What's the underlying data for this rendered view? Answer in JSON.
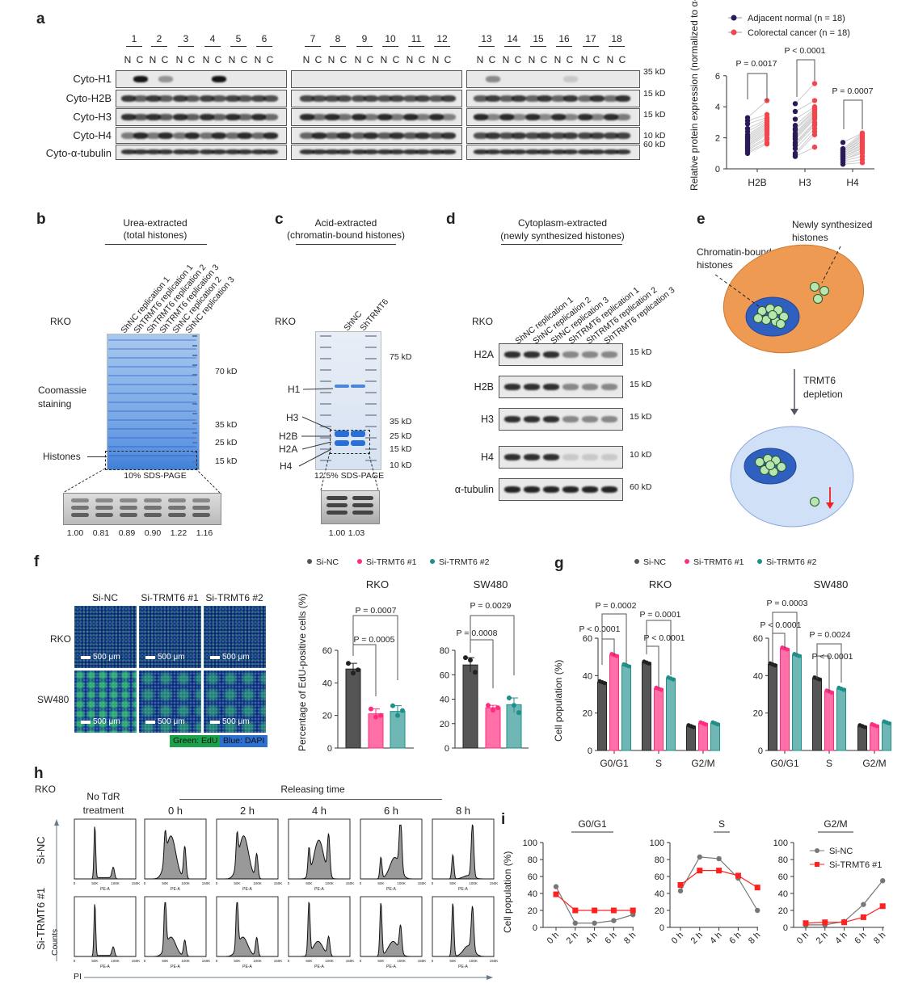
{
  "panel_labels": {
    "a": "a",
    "b": "b",
    "c": "c",
    "d": "d",
    "e": "e",
    "f": "f",
    "g": "g",
    "h": "h",
    "i": "i"
  },
  "colors": {
    "si_nc": "#555555",
    "si_trmt6_1": "#ff6fa8",
    "si_trmt6_2": "#6fb7b4",
    "adjacent_normal": "#2a1a55",
    "colorectal_cancer": "#f2464f",
    "coomassie": "#4a8fe0",
    "cytoplasm": "#ee9a52",
    "nucleus": "#2f5fbf",
    "nucleosome": "#b8e6b0",
    "line_red": "#ff2020",
    "line_grey": "#777777"
  },
  "panel_a": {
    "lanes": [
      "1",
      "2",
      "3",
      "4",
      "5",
      "6",
      "7",
      "8",
      "9",
      "10",
      "11",
      "12",
      "13",
      "14",
      "15",
      "16",
      "17",
      "18"
    ],
    "nc": [
      "N",
      "C"
    ],
    "rows": [
      "Cyto-H1",
      "Cyto-H2B",
      "Cyto-H3",
      "Cyto-H4",
      "Cyto-α-tubulin"
    ],
    "markers": [
      "35 kD",
      "15 kD",
      "15 kD",
      "10 kD",
      "60 kD"
    ]
  },
  "panel_b": {
    "title_line1": "Urea-extracted",
    "title_line2": "(total histones)",
    "cell_line": "RKO",
    "lanes": [
      "ShNC replication 1",
      "ShTRMT6 replication 1",
      "ShTRMT6 replication 2",
      "ShTRMT6 replication 3",
      "ShNC replication 2",
      "ShNC replication 3"
    ],
    "markers": [
      "70 kD",
      "35 kD",
      "25 kD",
      "15 kD"
    ],
    "stain_line1": "Coomassie",
    "stain_line2": "staining",
    "histones": "Histones",
    "gel": "10% SDS-PAGE",
    "quant": [
      "1.00",
      "0.81",
      "0.89",
      "0.90",
      "1.22",
      "1.16"
    ]
  },
  "panel_c": {
    "title_line1": "Acid-extracted",
    "title_line2": "(chromatin-bound histones)",
    "cell_line": "RKO",
    "lanes": [
      "ShNC",
      "ShTRMT6"
    ],
    "markers": [
      "75 kD",
      "35 kD",
      "25 kD",
      "15 kD",
      "10 kD"
    ],
    "bands": [
      "H1",
      "H3",
      "H2B",
      "H2A",
      "H4"
    ],
    "gel": "12.5% SDS-PAGE",
    "quant": [
      "1.00",
      "1.03"
    ]
  },
  "panel_d": {
    "title_line1": "Cytoplasm-extracted",
    "title_line2": "(newly synthesized histones)",
    "cell_line": "RKO",
    "lanes": [
      "ShNC replication 1",
      "ShNC replication 2",
      "ShNC replication 3",
      "ShTRMT6 replication 1",
      "ShTRMT6 replication 2",
      "ShTRMT6 replication 3"
    ],
    "rows": [
      "H2A",
      "H2B",
      "H3",
      "H4",
      "α-tubulin"
    ],
    "markers": [
      "15 kD",
      "15 kD",
      "15 kD",
      "10 kD",
      "60 kD"
    ]
  },
  "panel_e": {
    "newly_line1": "Newly synthesized",
    "newly_line2": "histones",
    "chromatin_line1": "Chromatin-bound",
    "chromatin_line2": "histones",
    "arrow_line1": "TRMT6",
    "arrow_line2": "depletion"
  },
  "panel_f": {
    "columns": [
      "Si-NC",
      "Si-TRMT6 #1",
      "Si-TRMT6 #2"
    ],
    "rows": [
      "RKO",
      "SW480"
    ],
    "scale_bar": "500 μm",
    "green_label": "Green: EdU",
    "blue_label": "Blue: DAPI"
  },
  "legend_fg": [
    "Si-NC",
    "Si-TRMT6 #1",
    "Si-TRMT6 #2"
  ],
  "panel_h": {
    "cell_line": "RKO",
    "no_tdr_line1": "No TdR",
    "no_tdr_line2": "treatment",
    "releasing": "Releasing time",
    "times": [
      "0 h",
      "2 h",
      "4 h",
      "6 h",
      "8 h"
    ],
    "rows": [
      "Si-NC",
      "Si-TRMT6 #1"
    ],
    "ylabel": "Counts",
    "xlabel": "PI",
    "axis_label": "PE-A",
    "x_ticks": [
      "0",
      "50K",
      "100K",
      "150K"
    ]
  },
  "chart_data": [
    {
      "id": "a",
      "type": "scatter",
      "ylabel": "Relative protein expression (normalized to α-tubulin)",
      "categories": [
        "H2B",
        "H3",
        "H4"
      ],
      "ylim": [
        0,
        6
      ],
      "yticks": [
        "0",
        "2",
        "4",
        "6"
      ],
      "legend_position": "top",
      "series": [
        {
          "name": "Adjacent normal (n = 18)",
          "values": {
            "H2B": [
              1.0,
              1.1,
              1.2,
              1.3,
              1.4,
              1.5,
              1.6,
              1.7,
              1.8,
              1.9,
              2.0,
              2.1,
              2.2,
              2.4,
              2.6,
              2.9,
              3.1,
              3.3
            ],
            "H3": [
              0.8,
              0.9,
              1.0,
              1.3,
              1.5,
              1.6,
              1.7,
              1.9,
              2.0,
              2.1,
              2.2,
              2.3,
              2.5,
              2.6,
              2.8,
              3.2,
              3.7,
              4.2
            ],
            "H4": [
              0.3,
              0.4,
              0.5,
              0.6,
              0.6,
              0.7,
              0.8,
              0.8,
              0.9,
              0.9,
              1.0,
              1.0,
              1.1,
              1.1,
              1.2,
              1.2,
              1.3,
              1.7
            ]
          }
        },
        {
          "name": "Colorectal cancer (n = 18)",
          "values": {
            "H2B": [
              1.6,
              1.7,
              1.9,
              2.0,
              2.2,
              2.3,
              2.4,
              2.5,
              2.6,
              2.7,
              2.8,
              2.9,
              3.0,
              3.1,
              3.2,
              3.3,
              3.5,
              4.4
            ],
            "H3": [
              1.4,
              2.2,
              2.4,
              2.6,
              2.8,
              2.9,
              3.0,
              3.2,
              3.3,
              3.4,
              3.5,
              3.6,
              3.7,
              3.8,
              3.9,
              4.0,
              4.4,
              5.5
            ],
            "H4": [
              0.4,
              0.6,
              0.8,
              1.0,
              1.1,
              1.2,
              1.3,
              1.4,
              1.5,
              1.6,
              1.7,
              1.8,
              1.9,
              2.0,
              2.1,
              2.2,
              2.3,
              2.3
            ]
          }
        }
      ],
      "pvalues": [
        "P = 0.0017",
        "P < 0.0001",
        "P = 0.0007"
      ]
    },
    {
      "id": "f-rko",
      "type": "bar",
      "title": "RKO",
      "ylabel": "Percentage of EdU-positive cells (%)",
      "categories": [
        "Si-NC",
        "Si-TRMT6 #1",
        "Si-TRMT6 #2"
      ],
      "values": [
        48.5,
        21,
        22.5
      ],
      "points": [
        [
          52,
          46,
          48
        ],
        [
          24,
          19,
          20
        ],
        [
          26,
          20,
          23
        ]
      ],
      "ylim": [
        0,
        60
      ],
      "yticks": [
        "0",
        "20",
        "40",
        "60"
      ],
      "pvalues": [
        "P = 0.0005",
        "P = 0.0007"
      ]
    },
    {
      "id": "f-sw480",
      "type": "bar",
      "title": "SW480",
      "categories": [
        "Si-NC",
        "Si-TRMT6 #1",
        "Si-TRMT6 #2"
      ],
      "values": [
        68,
        33,
        35.5
      ],
      "points": [
        [
          74,
          72,
          62
        ],
        [
          35,
          31,
          33
        ],
        [
          41,
          35,
          29
        ]
      ],
      "ylim": [
        0,
        80
      ],
      "yticks": [
        "0",
        "20",
        "40",
        "60",
        "80"
      ],
      "pvalues": [
        "P = 0.0008",
        "P = 0.0029"
      ]
    },
    {
      "id": "g-rko",
      "type": "bar",
      "title": "RKO",
      "ylabel": "Cell population (%)",
      "categories": [
        "G0/G1",
        "S",
        "G2/M"
      ],
      "ylim": [
        0,
        60
      ],
      "yticks": [
        "0",
        "20",
        "40",
        "60"
      ],
      "series": [
        {
          "name": "Si-NC",
          "values": [
            36.5,
            47,
            13
          ]
        },
        {
          "name": "Si-TRMT6 #1",
          "values": [
            51,
            33,
            14.5
          ]
        },
        {
          "name": "Si-TRMT6 #2",
          "values": [
            45.5,
            38.5,
            14.5
          ]
        }
      ],
      "pvalues": [
        "P < 0.0001",
        "P = 0.0002",
        "P < 0.0001",
        "P = 0.0001"
      ]
    },
    {
      "id": "g-sw480",
      "type": "bar",
      "title": "SW480",
      "categories": [
        "G0/G1",
        "S",
        "G2/M"
      ],
      "ylim": [
        0,
        60
      ],
      "yticks": [
        "0",
        "20",
        "40",
        "60"
      ],
      "series": [
        {
          "name": "Si-NC",
          "values": [
            46,
            38.5,
            13
          ]
        },
        {
          "name": "Si-TRMT6 #1",
          "values": [
            54.5,
            31.5,
            13.5
          ]
        },
        {
          "name": "Si-TRMT6 #2",
          "values": [
            51,
            33,
            15
          ]
        }
      ],
      "pvalues": [
        "P < 0.0001",
        "P = 0.0003",
        "P < 0.0001",
        "P = 0.0024"
      ]
    },
    {
      "id": "i-g0g1",
      "type": "line",
      "title": "G0/G1",
      "ylabel": "Cell population (%)",
      "x": [
        "0 h",
        "2 h",
        "4 h",
        "6 h",
        "8 h"
      ],
      "ylim": [
        0,
        100
      ],
      "yticks": [
        "0",
        "20",
        "40",
        "60",
        "80",
        "100"
      ],
      "series": [
        {
          "name": "Si-NC",
          "values": [
            48,
            5,
            5,
            8,
            15
          ]
        },
        {
          "name": "Si-TRMT6 #1",
          "values": [
            39,
            20,
            20,
            20,
            20
          ]
        }
      ]
    },
    {
      "id": "i-s",
      "type": "line",
      "title": "S",
      "x": [
        "0 h",
        "2 h",
        "4 h",
        "6 h",
        "8 h"
      ],
      "ylim": [
        0,
        100
      ],
      "yticks": [
        "0",
        "20",
        "40",
        "60",
        "80",
        "100"
      ],
      "series": [
        {
          "name": "Si-NC",
          "values": [
            43,
            83,
            81,
            58,
            20
          ]
        },
        {
          "name": "Si-TRMT6 #1",
          "values": [
            50,
            67,
            67,
            61,
            47
          ]
        }
      ]
    },
    {
      "id": "i-g2m",
      "type": "line",
      "title": "G2/M",
      "x": [
        "0 h",
        "2 h",
        "4 h",
        "6 h",
        "8 h"
      ],
      "ylim": [
        0,
        100
      ],
      "yticks": [
        "0",
        "20",
        "40",
        "60",
        "80",
        "100"
      ],
      "legend_position": "top-right",
      "series": [
        {
          "name": "Si-NC",
          "values": [
            3,
            3,
            7,
            27,
            55
          ]
        },
        {
          "name": "Si-TRMT6 #1",
          "values": [
            5,
            6,
            6,
            12,
            25
          ]
        }
      ]
    }
  ]
}
